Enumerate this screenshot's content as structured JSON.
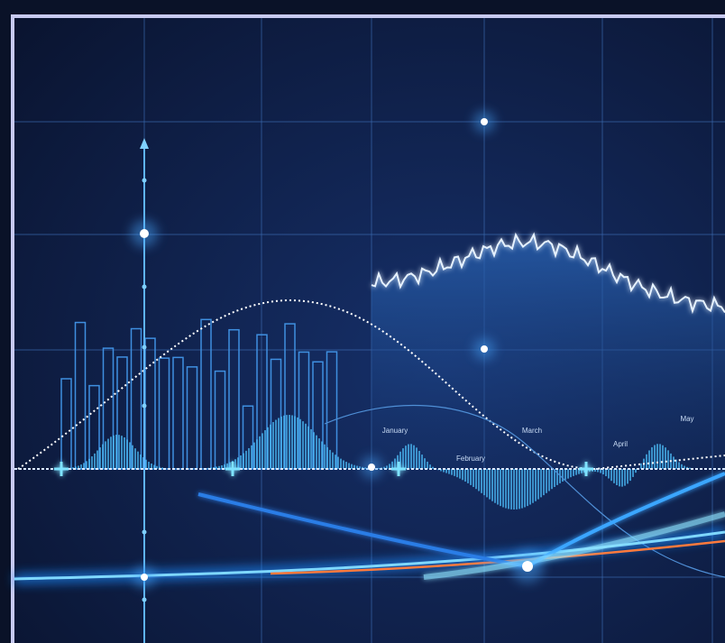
{
  "labels": [
    "January",
    "February",
    "March",
    "April",
    "May"
  ]
}
